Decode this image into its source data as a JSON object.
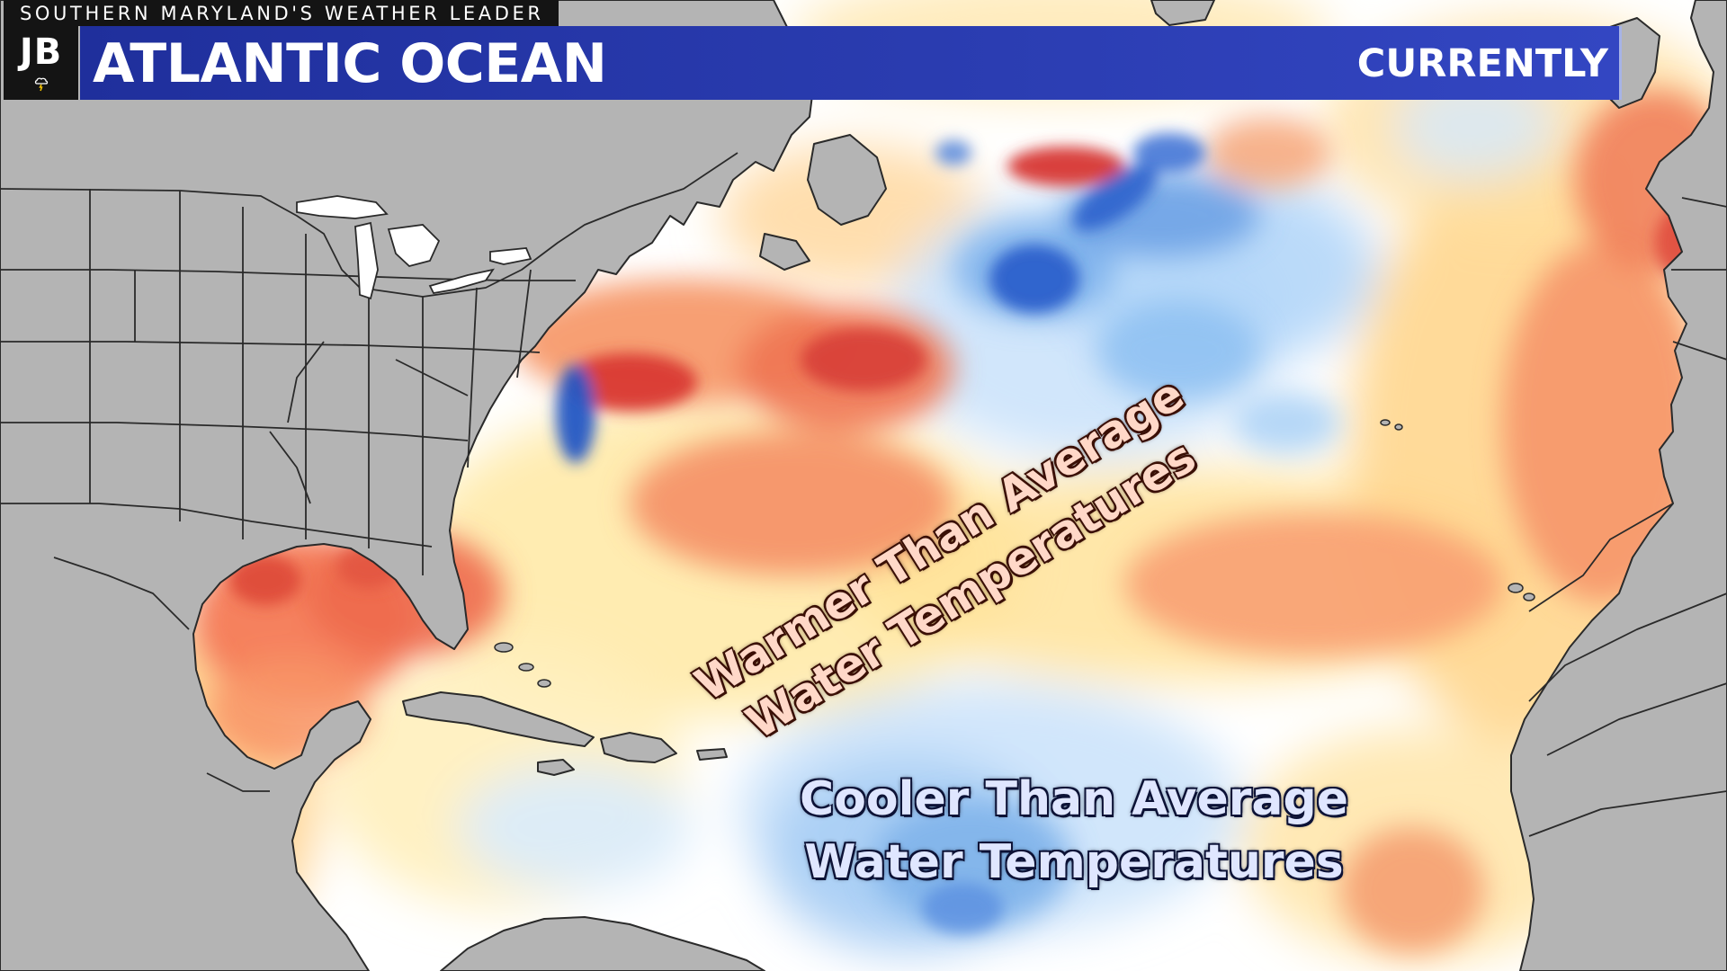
{
  "header": {
    "tagline": "SOUTHERN MARYLAND'S WEATHER LEADER",
    "logo_text": "JB",
    "logo_icon": "storm-cloud-icon",
    "title": "ATLANTIC OCEAN",
    "timeframe": "CURRENTLY"
  },
  "annotations": {
    "warm_line1": "Warmer Than Average",
    "warm_line2": "Water Temperatures",
    "cool_line1": "Cooler Than Average",
    "cool_line2": "Water Temperatures"
  },
  "colors": {
    "land": "#b4b4b4",
    "borders": "#1c1c1c",
    "neutral_ocean": "#ffffff",
    "warm_scale": [
      "#fff5c4",
      "#ffe39a",
      "#ffbf7a",
      "#f98f60",
      "#ea5a45",
      "#cf2c2c"
    ],
    "cool_scale": [
      "#e4f2ff",
      "#b9dcfb",
      "#8cc0f2",
      "#5c97e3",
      "#2f64cd",
      "#143fa9"
    ],
    "title_bar": "#2a3cb0"
  }
}
